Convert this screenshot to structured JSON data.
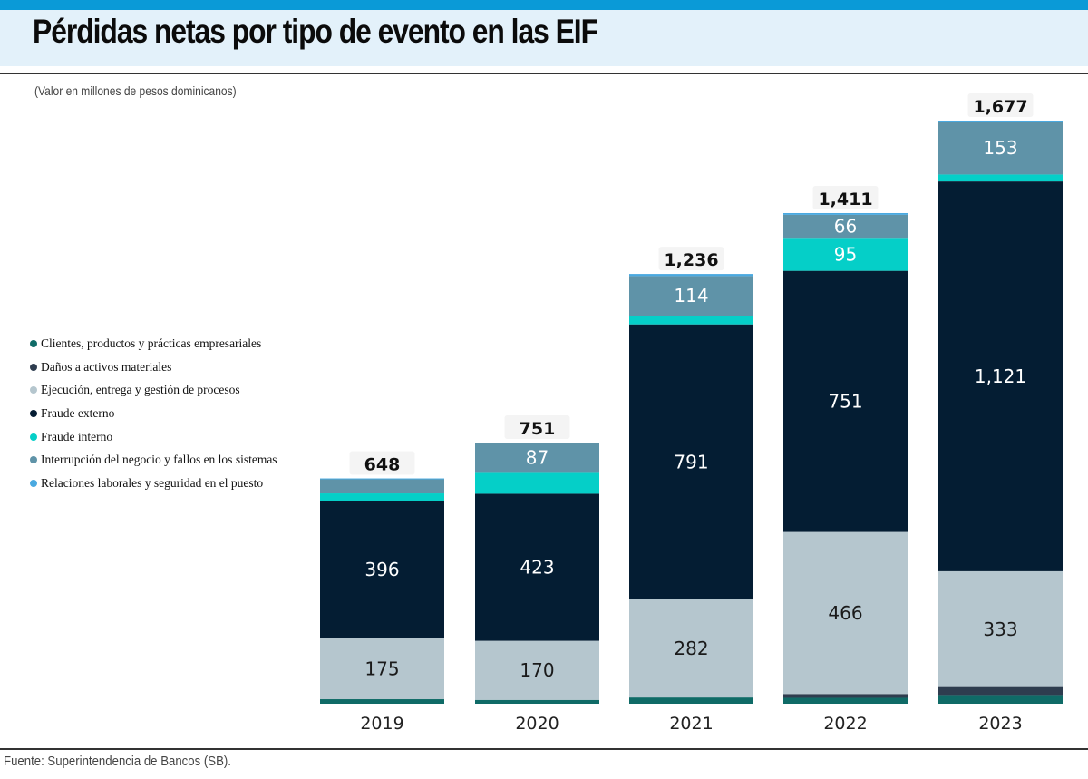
{
  "header": {
    "title": "Pérdidas netas por tipo de evento en las EIF",
    "subtitle": "(Valor en millones de pesos dominicanos)"
  },
  "footer": {
    "source": "Fuente: Superintendencia de Bancos (SB)."
  },
  "colors": {
    "accent_bar": "#0a9ad7",
    "title_band": "#e3f1fa"
  },
  "chart_data": {
    "type": "bar",
    "stacked": true,
    "title": "Pérdidas netas por tipo de evento en las EIF",
    "subtitle": "(Valor en millones de pesos dominicanos)",
    "xlabel": "",
    "ylabel": "",
    "categories": [
      "2019",
      "2020",
      "2021",
      "2022",
      "2023"
    ],
    "totals": [
      648,
      751,
      1236,
      1411,
      1677
    ],
    "total_labels": [
      "648",
      "751",
      "1,236",
      "1,411",
      "1,677"
    ],
    "ylim": [
      0,
      1677
    ],
    "grid": false,
    "legend_position": "left",
    "series": [
      {
        "name": "Clientes, productos y prácticas empresariales",
        "color": "#0f6b67",
        "values": [
          13,
          11,
          18,
          17,
          25
        ],
        "labels": [
          "",
          "",
          "",
          "",
          ""
        ]
      },
      {
        "name": "Daños a activos materiales",
        "color": "#2e3d4f",
        "values": [
          0,
          0,
          0,
          11,
          23
        ],
        "labels": [
          "",
          "",
          "",
          "",
          ""
        ]
      },
      {
        "name": "Ejecución, entrega y gestión de procesos",
        "color": "#b5c6ce",
        "values": [
          175,
          170,
          282,
          466,
          333
        ],
        "labels": [
          "175",
          "170",
          "282",
          "466",
          "333"
        ]
      },
      {
        "name": "Fraude externo",
        "color": "#041d33",
        "values": [
          396,
          423,
          791,
          751,
          1121
        ],
        "labels": [
          "396",
          "423",
          "791",
          "751",
          "1,121"
        ]
      },
      {
        "name": "Fraude interno",
        "color": "#05cfc8",
        "values": [
          21,
          60,
          25,
          95,
          20
        ],
        "labels": [
          "",
          "",
          "",
          "95",
          ""
        ]
      },
      {
        "name": "Interrupción del negocio y fallos en los sistemas",
        "color": "#5f93a8",
        "values": [
          42,
          87,
          114,
          66,
          153
        ],
        "labels": [
          "",
          "87",
          "114",
          "66",
          "153"
        ]
      },
      {
        "name": "Relaciones laborales y seguridad en el puesto",
        "color": "#4aa9e0",
        "values": [
          1,
          0,
          6,
          5,
          2
        ],
        "labels": [
          "",
          "",
          "",
          "",
          ""
        ]
      }
    ]
  }
}
